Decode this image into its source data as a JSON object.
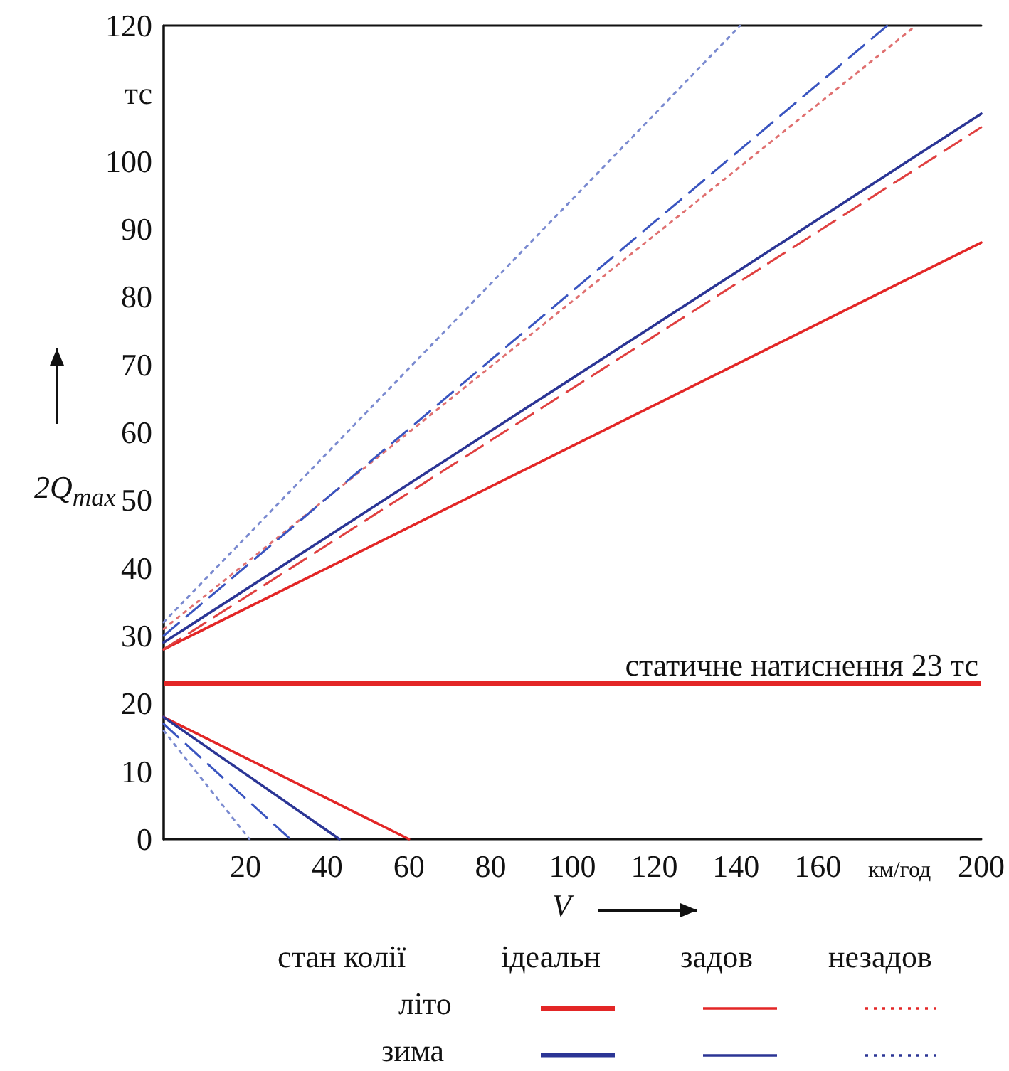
{
  "chart_data": {
    "type": "line",
    "xlabel": "V",
    "ylabel": "2Q$_{max}$",
    "xlim": [
      0,
      200
    ],
    "xticks": [
      {
        "value": 0,
        "label": null
      },
      20,
      40,
      60,
      80,
      100,
      120,
      140,
      160,
      {
        "value": 180,
        "label": "км/год"
      },
      200
    ],
    "ylim": [
      0,
      120
    ],
    "yticks": [
      0,
      10,
      20,
      30,
      40,
      50,
      60,
      70,
      80,
      90,
      100,
      {
        "value": 110,
        "label": "тс"
      },
      120
    ],
    "series": [
      {
        "color": "#e32626",
        "line_style": "solid",
        "x": [
          0,
          200
        ],
        "values": [
          28,
          88
        ]
      },
      {
        "color": "#e04040",
        "line_style": "dashed",
        "x": [
          0,
          200
        ],
        "values": [
          28,
          105
        ]
      },
      {
        "color": "#e07070",
        "line_style": "dotted",
        "x": [
          0,
          184
        ],
        "values": [
          31,
          120
        ]
      },
      {
        "color": "#2b3595",
        "line_style": "solid",
        "x": [
          0,
          200
        ],
        "values": [
          29,
          107
        ]
      },
      {
        "color": "#3a55c0",
        "line_style": "dashed",
        "x": [
          0,
          177
        ],
        "values": [
          30,
          120
        ]
      },
      {
        "color": "#7a8ad0",
        "line_style": "dotted",
        "x": [
          0,
          141
        ],
        "values": [
          32,
          120
        ]
      },
      {
        "color": "#e32626",
        "line_style": "solid",
        "x": [
          0,
          60
        ],
        "values": [
          18,
          0
        ]
      },
      {
        "color": "#2b3595",
        "line_style": "solid",
        "x": [
          0,
          43
        ],
        "values": [
          18,
          0
        ]
      },
      {
        "color": "#3a55c0",
        "line_style": "dashed",
        "x": [
          0,
          31
        ],
        "values": [
          17,
          0
        ]
      },
      {
        "color": "#7a8ad0",
        "line_style": "dotted",
        "x": [
          0,
          21
        ],
        "values": [
          16,
          0
        ]
      }
    ],
    "ref_lines": [
      {
        "axis": "y",
        "value": 23,
        "label": "статичне натиснення 23 тс",
        "color": "#e32626"
      }
    ],
    "annotations": [
      "стан колії",
      "ідеальн",
      "задов",
      "незадов",
      "літо",
      "зима"
    ],
    "grid": false,
    "marker": "none"
  }
}
